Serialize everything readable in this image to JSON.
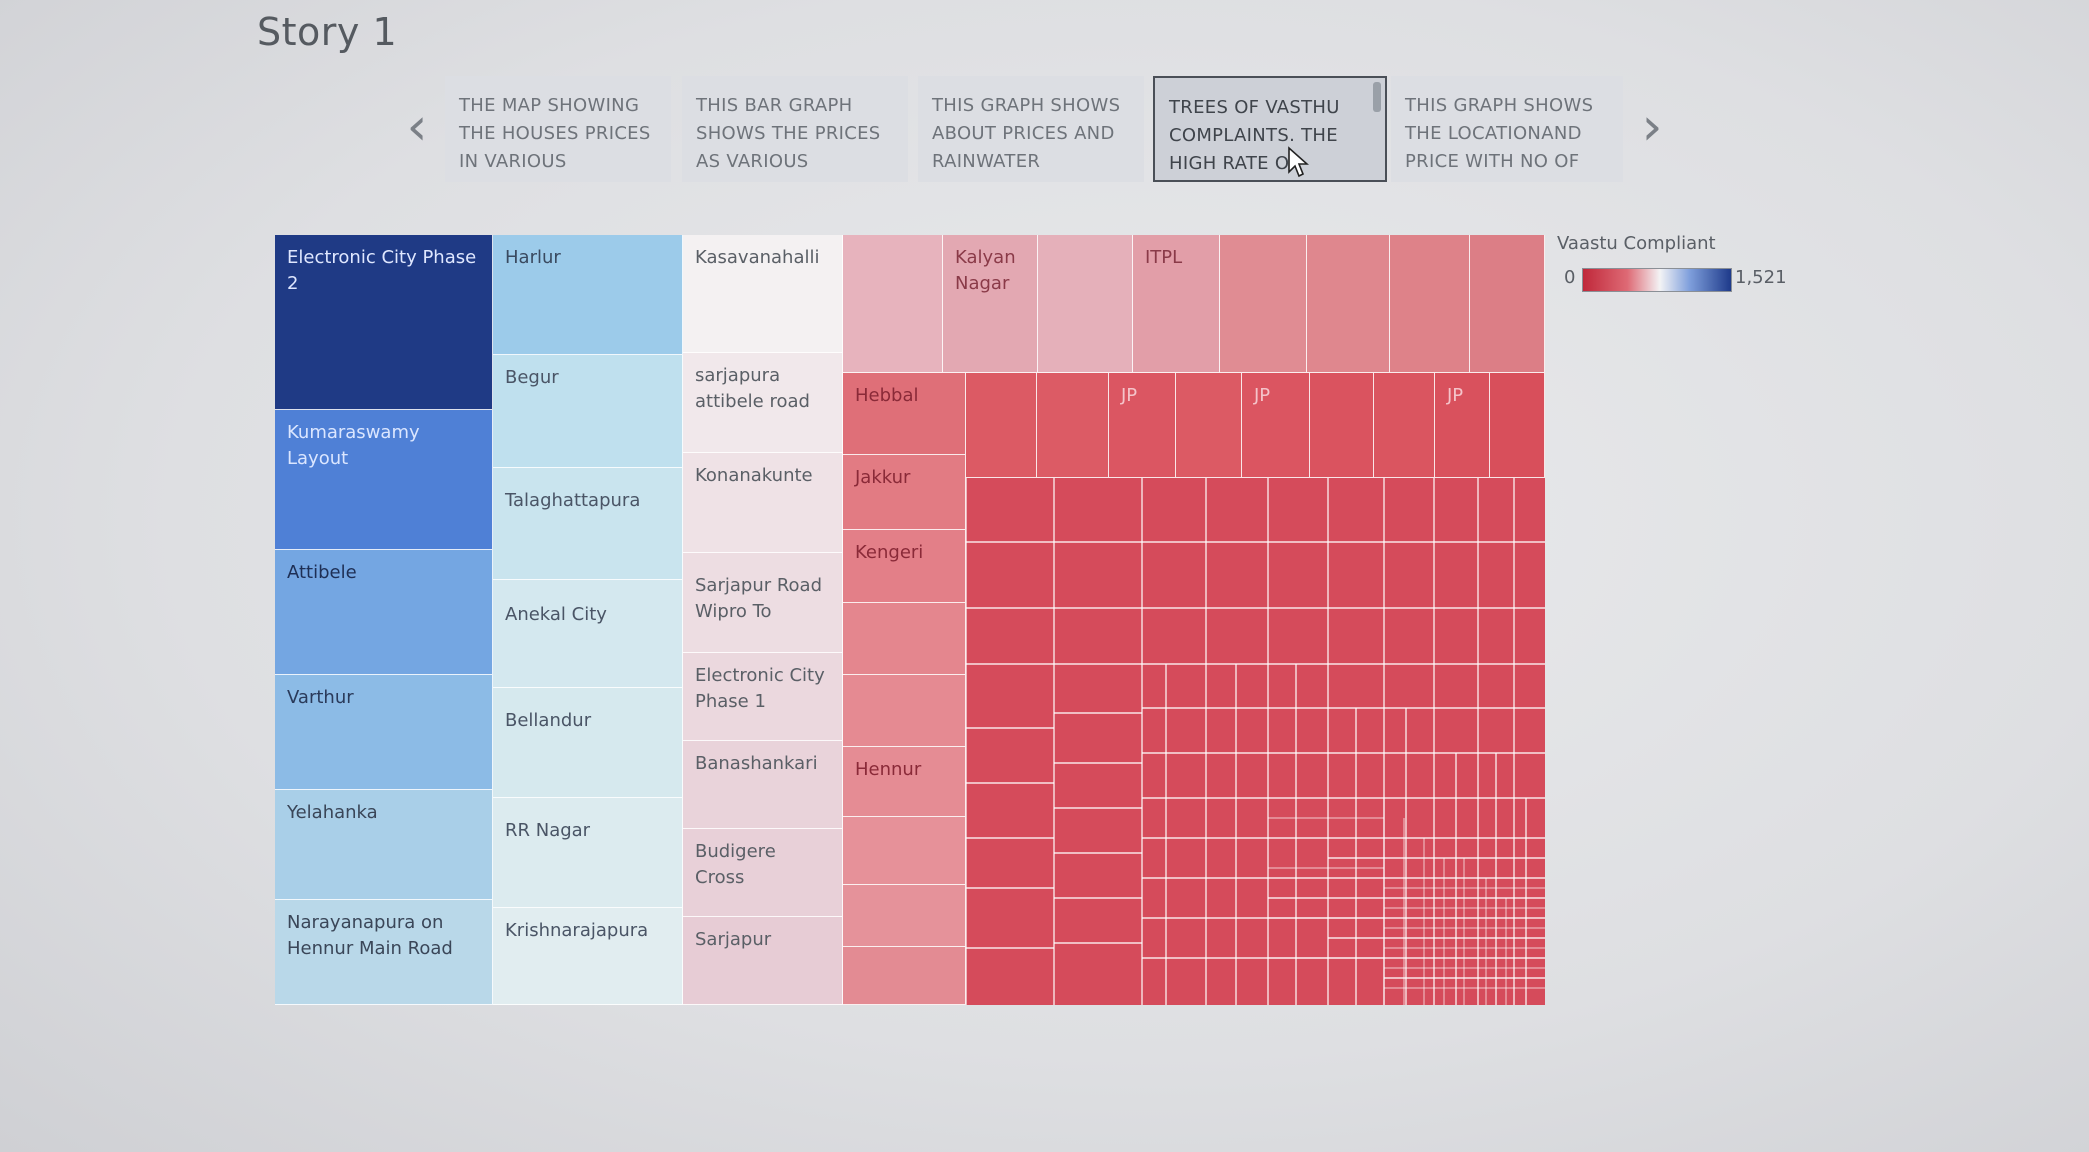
{
  "story": {
    "title": "Story 1"
  },
  "story_points": [
    {
      "text": "THE MAP SHOWING THE HOUSES PRICES IN VARIOUS"
    },
    {
      "text": "THIS BAR GRAPH SHOWS THE PRICES AS VARIOUS"
    },
    {
      "text": "THIS GRAPH SHOWS ABOUT PRICES AND RAINWATER"
    },
    {
      "text": "TREES OF VASTHU COMPLAINTS. THE HIGH RATE OF"
    },
    {
      "text": "THIS GRAPH SHOWS THE LOCATIONAND PRICE WITH NO OF"
    }
  ],
  "nav": {
    "prev_icon": "chevron-left-icon",
    "next_icon": "chevron-right-icon"
  },
  "legend": {
    "title": "Vaastu Compliant",
    "min": "0",
    "max": "1,521"
  },
  "treemap_labels": {
    "electronic_city_phase_2": "Electronic City Phase 2",
    "kumaraswamy_layout": "Kumaraswamy Layout",
    "attibele": "Attibele",
    "varthur": "Varthur",
    "yelahanka": "Yelahanka",
    "narayanapura": "Narayanapura on Hennur Main Road",
    "harlur": "Harlur",
    "begur": "Begur",
    "talaghattapura": "Talaghattapura",
    "anekal_city": "Anekal City",
    "bellandur": "Bellandur",
    "rr_nagar": "RR Nagar",
    "krishnarajapura": "Krishnarajapura",
    "kasavanahalli": "Kasavanahalli",
    "sarjapura_attibele": "sarjapura attibele road",
    "konanakunte": "Konanakunte",
    "sarjapur_wipro": "Sarjapur Road Wipro To",
    "electronic_city_phase_1": "Electronic City Phase 1",
    "banashankari": "Banashankari",
    "budigere_cross": "Budigere Cross",
    "sarjapur": "Sarjapur",
    "kalyan_nagar": "Kalyan Nagar",
    "itpl": "ITPL",
    "hebbal": "Hebbal",
    "jp_1": "JP",
    "jp_2": "JP",
    "jp_3": "JP",
    "jakkur": "Jakkur",
    "kengeri": "Kengeri",
    "hennur": "Hennur"
  },
  "colors": {
    "blue_dark": "#1f3a85",
    "blue_mid": "#4a7bd4",
    "red": "#d94a5a",
    "pink_light": "#efd6dc"
  }
}
